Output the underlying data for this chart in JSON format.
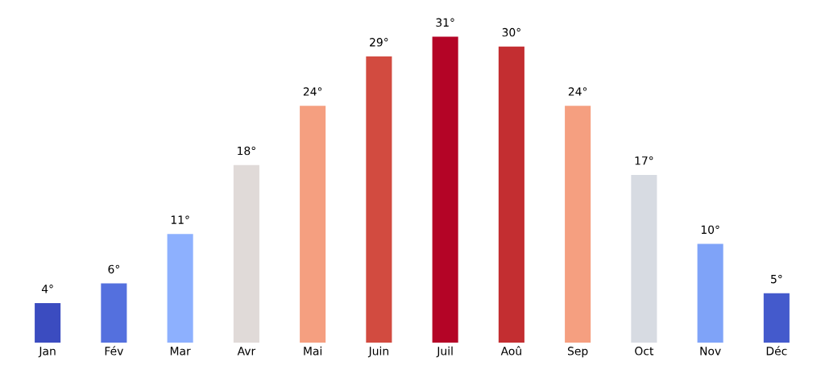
{
  "chart_data": {
    "type": "bar",
    "categories": [
      "Jan",
      "Fév",
      "Mar",
      "Avr",
      "Mai",
      "Juin",
      "Juil",
      "Aoû",
      "Sep",
      "Oct",
      "Nov",
      "Déc"
    ],
    "values": [
      4,
      6,
      11,
      18,
      24,
      29,
      31,
      30,
      24,
      17,
      10,
      5
    ],
    "value_labels": [
      "4°",
      "6°",
      "11°",
      "18°",
      "24°",
      "29°",
      "31°",
      "30°",
      "24°",
      "17°",
      "10°",
      "5°"
    ],
    "colors": [
      "#3b4cc0",
      "#5470de",
      "#8db0fe",
      "#e0dad8",
      "#f59f80",
      "#d24b40",
      "#b40426",
      "#c32e31",
      "#f59f80",
      "#d7dbe2",
      "#7fa3f8",
      "#445acc"
    ],
    "tick_labels": "x",
    "grid": false,
    "legend": false
  }
}
